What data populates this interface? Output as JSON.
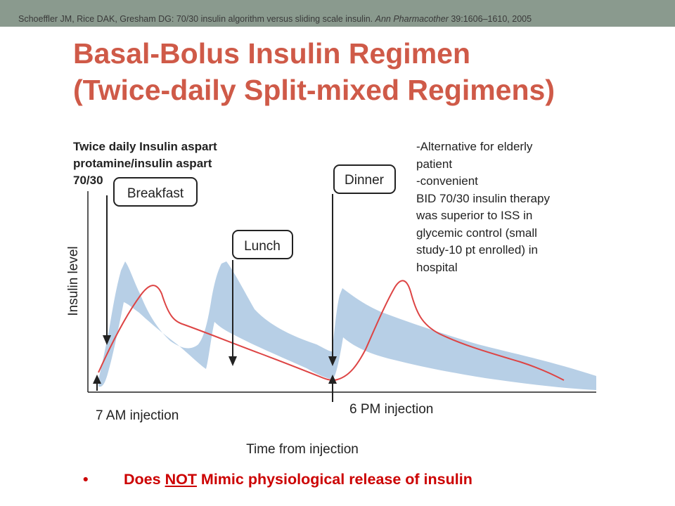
{
  "citation": {
    "authors": "Schoeffler JM, Rice DAK, Gresham DG: 70/30 insulin algorithm versus sliding scale insulin. ",
    "journal": "Ann Pharmacother",
    "volume": "39",
    "pages": ":1606–1610, 2005"
  },
  "title": {
    "line1": "Basal-Bolus Insulin Regimen",
    "line2": "(Twice-daily Split-mixed Regimens)"
  },
  "regimen_label": {
    "line1": "Twice daily Insulin aspart",
    "line2": "protamine/insulin aspart",
    "line3": "70/30"
  },
  "notes": [
    "-Alternative for elderly",
    "patient",
    "-convenient",
    "BID 70/30 insulin therapy",
    "was superior to ISS in",
    "glycemic control  (small",
    "study-10 pt enrolled) in",
    "hospital"
  ],
  "diagram": {
    "y_axis_label": "Insulin level",
    "x_axis_label": "Time from injection",
    "meals": {
      "breakfast": "Breakfast",
      "lunch": "Lunch",
      "dinner": "Dinner"
    },
    "injections": {
      "morning": "7 AM injection",
      "evening": "6 PM injection"
    },
    "colors": {
      "physiological_band": "#b7cfe6",
      "insulin_curve": "#dd4444",
      "axes": "#222222"
    }
  },
  "bullet": {
    "prefix": "Does ",
    "emphasis": "NOT",
    "suffix": " Mimic physiological release of insulin"
  },
  "colors": {
    "title": "#cf5a48",
    "top_bar": "#8a9a8e",
    "bullet_text": "#cc0000"
  }
}
